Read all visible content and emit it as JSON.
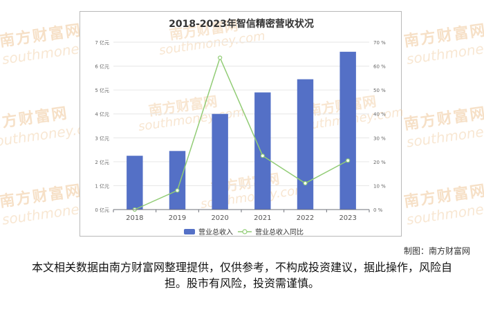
{
  "chart_data": {
    "type": "bar",
    "title": "2018-2023年智信精密营收状况",
    "categories": [
      "2018",
      "2019",
      "2020",
      "2021",
      "2022",
      "2023"
    ],
    "series": [
      {
        "name": "营业总收入",
        "type": "bar",
        "axis": "left",
        "values": [
          2.25,
          2.45,
          4.0,
          4.9,
          5.45,
          6.6
        ],
        "color": "#5470c6"
      },
      {
        "name": "营业总收入同比",
        "type": "line",
        "axis": "right",
        "values": [
          0.0,
          8.0,
          63.5,
          22.5,
          11.0,
          20.5
        ],
        "color": "#91cc75"
      }
    ],
    "ylim": [
      0,
      7
    ],
    "y2lim": [
      0,
      70
    ],
    "y_ticks": [
      "0 亿元",
      "1 亿元",
      "2 亿元",
      "3 亿元",
      "4 亿元",
      "5 亿元",
      "6 亿元",
      "7 亿元"
    ],
    "y2_ticks": [
      "0 %",
      "10 %",
      "20 %",
      "30 %",
      "40 %",
      "50 %",
      "60 %",
      "70 %"
    ],
    "grid": true,
    "legend_position": "bottom-center"
  },
  "watermark": {
    "brand_cn": "南方财富网",
    "brand_en": "southmoney.com"
  },
  "credit": "制图：南方财富网",
  "disclaimer": "本文相关数据由南方财富网整理提供，仅供参考，不构成投资建议，据此操作，风险自担。股市有风险，投资需谨慎。"
}
